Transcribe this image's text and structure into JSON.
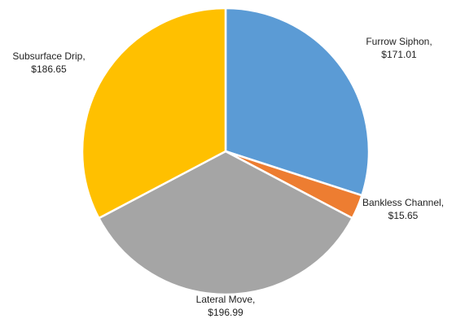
{
  "chart_data": {
    "type": "pie",
    "title": "",
    "start_angle_deg": 0,
    "direction": "clockwise",
    "slices": [
      {
        "label": "Furrow Siphon",
        "value": 171.01,
        "value_text": "$171.01",
        "color": "#5B9BD5"
      },
      {
        "label": "Bankless Channel",
        "value": 15.65,
        "value_text": "$15.65",
        "color": "#ED7D31"
      },
      {
        "label": "Lateral Move",
        "value": 196.99,
        "value_text": "$196.99",
        "color": "#A5A5A5"
      },
      {
        "label": "Subsurface Drip",
        "value": 186.65,
        "value_text": "$186.65",
        "color": "#FFC000"
      }
    ],
    "data_labels": true,
    "legend": "none"
  }
}
